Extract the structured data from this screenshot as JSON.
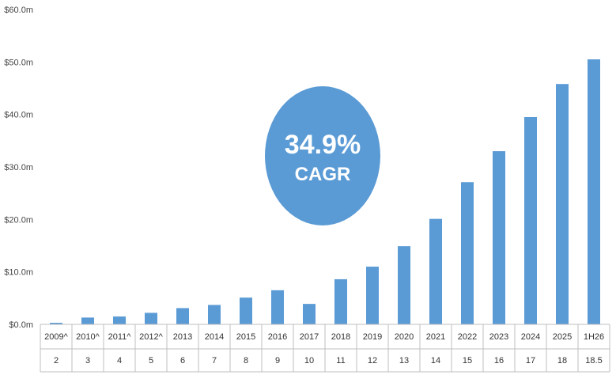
{
  "chart_data": {
    "type": "bar",
    "categories": [
      "2009^",
      "2010^",
      "2011^",
      "2012^",
      "2013",
      "2014",
      "2015",
      "2016",
      "2017",
      "2018",
      "2019",
      "2020",
      "2021",
      "2022",
      "2023",
      "2024",
      "2025",
      "1H26"
    ],
    "sub_labels": [
      "2",
      "3",
      "4",
      "5",
      "6",
      "7",
      "8",
      "9",
      "10",
      "11",
      "12",
      "13",
      "14",
      "15",
      "16",
      "17",
      "18",
      "18.5"
    ],
    "values": [
      0.3,
      1.3,
      1.5,
      2.2,
      3.1,
      3.7,
      5.1,
      6.5,
      3.9,
      8.6,
      11.0,
      14.9,
      20.1,
      27.1,
      33.0,
      39.5,
      45.8,
      50.5
    ],
    "ylim": [
      0,
      60
    ],
    "yticks": [
      0,
      10,
      20,
      30,
      40,
      50,
      60
    ],
    "ytick_labels": [
      "$0.0m",
      "$10.0m",
      "$20.0m",
      "$30.0m",
      "$40.0m",
      "$50.0m",
      "$60.0m"
    ],
    "bar_color": "#5b9bd5",
    "grid": false,
    "annotation": {
      "value": "34.9%",
      "label": "CAGR",
      "color": "#5b9bd5"
    }
  }
}
